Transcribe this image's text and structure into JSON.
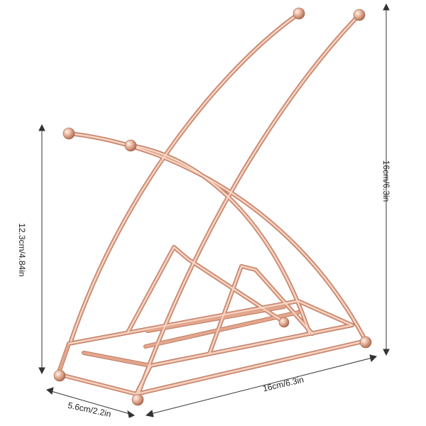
{
  "dimensions": {
    "total_height": "16cm/6.3in",
    "front_height": "12.3cm/4.84in",
    "length": "16cm/6.3in",
    "width": "5.6cm/2.2in"
  },
  "colors": {
    "metal_light": "#f6d2c0",
    "metal_mid": "#e2a68c",
    "metal_dark": "#b97a62",
    "dimension_line": "#333333"
  }
}
